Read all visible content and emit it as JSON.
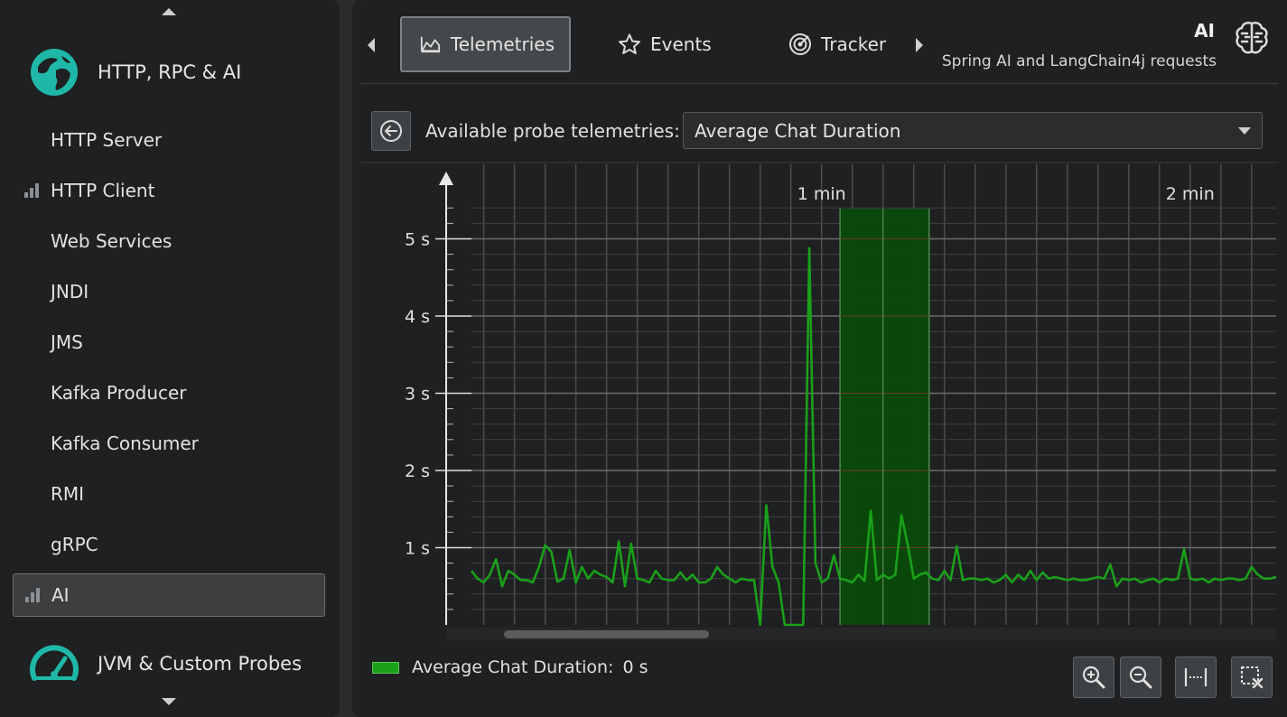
{
  "sidebar": {
    "groups": [
      {
        "label": "HTTP, RPC & AI",
        "icon": "globe-icon"
      },
      {
        "label": "JVM & Custom Probes",
        "icon": "speedometer-icon"
      }
    ],
    "items": [
      {
        "label": "HTTP Server",
        "icon": ""
      },
      {
        "label": "HTTP Client",
        "icon": "signal-bars-icon"
      },
      {
        "label": "Web Services",
        "icon": ""
      },
      {
        "label": "JNDI",
        "icon": ""
      },
      {
        "label": "JMS",
        "icon": ""
      },
      {
        "label": "Kafka Producer",
        "icon": ""
      },
      {
        "label": "Kafka Consumer",
        "icon": ""
      },
      {
        "label": "RMI",
        "icon": ""
      },
      {
        "label": "gRPC",
        "icon": ""
      },
      {
        "label": "AI",
        "icon": "signal-bars-icon",
        "selected": true
      }
    ]
  },
  "tabs": [
    {
      "label": "Telemetries",
      "icon": "chart-icon",
      "active": true
    },
    {
      "label": "Events",
      "icon": "star-icon"
    },
    {
      "label": "Tracker",
      "icon": "target-icon"
    }
  ],
  "header": {
    "title": "AI",
    "subtitle": "Spring AI and LangChain4j requests"
  },
  "probe": {
    "label": "Available probe telemetries:",
    "selected": "Average Chat Duration"
  },
  "colors": {
    "accent": "#1fb8a8",
    "series": "#1aa01a",
    "highlight": "#0a4a0a"
  },
  "chart_data": {
    "type": "line",
    "x_unit": "seconds",
    "x_tick_labels": [
      {
        "t": 60,
        "label": "1 min"
      },
      {
        "t": 120,
        "label": "2 min"
      }
    ],
    "y_tick_labels": [
      {
        "v": 1,
        "label": "1 s"
      },
      {
        "v": 2,
        "label": "2 s"
      },
      {
        "v": 3,
        "label": "3 s"
      },
      {
        "v": 4,
        "label": "4 s"
      },
      {
        "v": 5,
        "label": "5 s"
      }
    ],
    "ylim": [
      0,
      5.5
    ],
    "xlim": [
      3,
      134
    ],
    "highlight_range": [
      63,
      77.5
    ],
    "grid": true,
    "series": [
      {
        "name": "Average Chat Duration",
        "x": [
          3,
          4,
          5,
          6,
          7,
          8,
          9,
          10,
          11,
          12,
          13,
          14,
          15,
          16,
          17,
          18,
          19,
          20,
          21,
          22,
          23,
          24,
          25,
          26,
          27,
          28,
          29,
          30,
          31,
          32,
          33,
          34,
          35,
          36,
          37,
          38,
          39,
          40,
          41,
          42,
          43,
          44,
          45,
          46,
          47,
          48,
          49,
          50,
          51,
          52,
          53,
          54,
          55,
          56,
          57,
          58,
          59,
          60,
          61,
          62,
          63,
          64,
          65,
          66,
          67,
          68,
          69,
          70,
          71,
          72,
          73,
          74,
          75,
          76,
          77,
          78,
          79,
          80,
          81,
          82,
          83,
          84,
          85,
          86,
          87,
          88,
          89,
          90,
          91,
          92,
          93,
          94,
          95,
          96,
          97,
          98,
          99,
          100,
          101,
          102,
          103,
          104,
          105,
          106,
          107,
          108,
          109,
          110,
          111,
          112,
          113,
          114,
          115,
          116,
          117,
          118,
          119,
          120,
          121,
          122,
          123,
          124,
          125,
          126,
          127,
          128,
          129,
          130,
          131,
          132,
          133,
          134
        ],
        "values": [
          0.7,
          0.6,
          0.55,
          0.65,
          0.85,
          0.5,
          0.7,
          0.65,
          0.58,
          0.58,
          0.55,
          0.75,
          1.03,
          0.95,
          0.56,
          0.6,
          0.97,
          0.55,
          0.75,
          0.6,
          0.7,
          0.65,
          0.62,
          0.55,
          1.08,
          0.5,
          1.05,
          0.6,
          0.58,
          0.55,
          0.7,
          0.6,
          0.58,
          0.58,
          0.68,
          0.58,
          0.65,
          0.55,
          0.55,
          0.6,
          0.75,
          0.65,
          0.6,
          0.55,
          0.6,
          0.58,
          0.58,
          0.0,
          1.55,
          0.75,
          0.55,
          0.0,
          0.0,
          0.0,
          0.0,
          4.88,
          0.8,
          0.55,
          0.6,
          0.9,
          0.6,
          0.58,
          0.55,
          0.65,
          0.57,
          1.48,
          0.58,
          0.65,
          0.6,
          0.65,
          1.42,
          1.05,
          0.6,
          0.65,
          0.68,
          0.6,
          0.58,
          0.7,
          0.58,
          1.02,
          0.58,
          0.6,
          0.6,
          0.58,
          0.6,
          0.55,
          0.58,
          0.65,
          0.55,
          0.65,
          0.58,
          0.7,
          0.58,
          0.68,
          0.6,
          0.62,
          0.6,
          0.58,
          0.6,
          0.58,
          0.58,
          0.6,
          0.62,
          0.6,
          0.78,
          0.5,
          0.6,
          0.58,
          0.6,
          0.55,
          0.58,
          0.6,
          0.55,
          0.6,
          0.58,
          0.6,
          0.98,
          0.6,
          0.58,
          0.6,
          0.55,
          0.6,
          0.58,
          0.6,
          0.6,
          0.58,
          0.6,
          0.75,
          0.65,
          0.6,
          0.6,
          0.62
        ]
      }
    ]
  },
  "legend": {
    "label": "Average Chat Duration:",
    "value": "0 s"
  },
  "tools": [
    {
      "name": "zoom-in-icon"
    },
    {
      "name": "zoom-out-icon"
    },
    {
      "name": "fit-width-icon"
    },
    {
      "name": "clear-selection-icon"
    }
  ]
}
